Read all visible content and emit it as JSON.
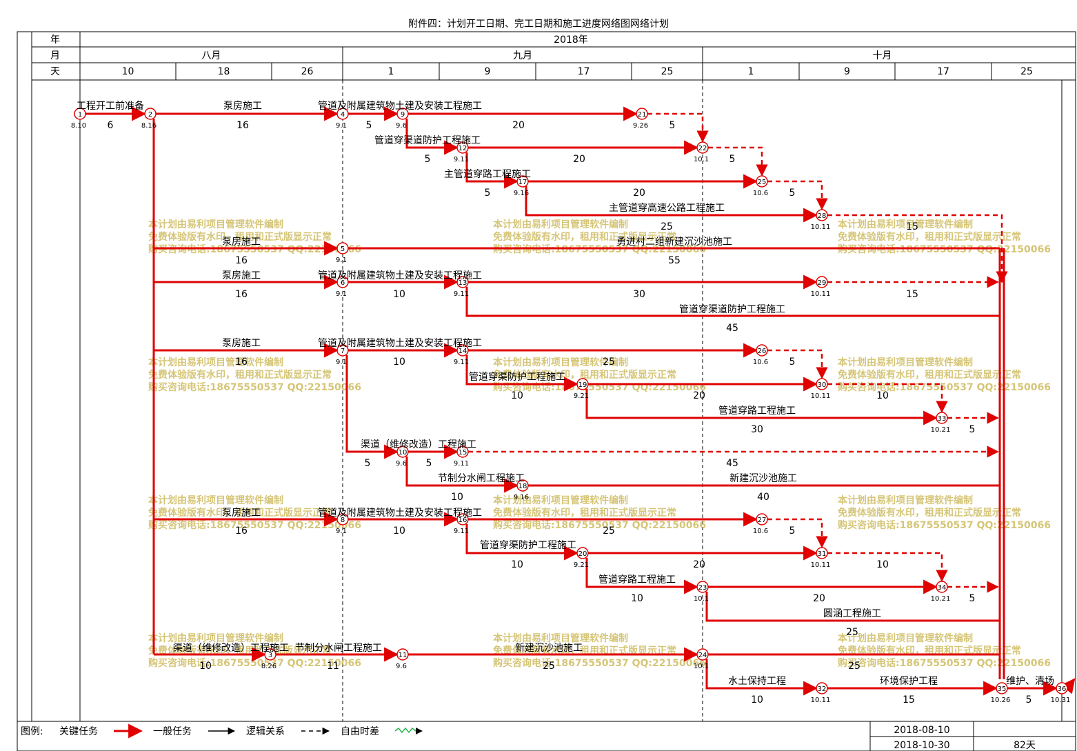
{
  "title": "附件四：计划开工日期、完工日期和施工进度网络图网络计划",
  "header": {
    "row_labels": [
      "年",
      "月",
      "天"
    ],
    "year": "2018年",
    "months": [
      "八月",
      "九月",
      "十月"
    ],
    "days": [
      "10",
      "18",
      "26",
      "1",
      "9",
      "17",
      "25",
      "1",
      "9",
      "17",
      "25"
    ]
  },
  "watermark": [
    "本计划由易利项目管理软件编制",
    "免费体验版有水印，租用和正式版显示正常",
    "购买咨询电话:18675550537 QQ:22150066"
  ],
  "legend": {
    "label": "图例:",
    "critical": "关键任务",
    "general": "一般任务",
    "logic": "逻辑关系",
    "free": "自由时差",
    "start": "2018-08-10",
    "end": "2018-10-30",
    "total": "82天"
  },
  "nodes": [
    {
      "id": "1",
      "date": "8.10"
    },
    {
      "id": "2",
      "date": "8.16"
    },
    {
      "id": "4",
      "date": "9.1"
    },
    {
      "id": "9",
      "date": "9.6"
    },
    {
      "id": "21",
      "date": "9.26"
    },
    {
      "id": "12",
      "date": "9.11"
    },
    {
      "id": "22",
      "date": "10.1"
    },
    {
      "id": "17",
      "date": "9.16"
    },
    {
      "id": "25",
      "date": "10.6"
    },
    {
      "id": "28",
      "date": "10.11"
    },
    {
      "id": "5",
      "date": "9.1"
    },
    {
      "id": "6",
      "date": "9.1"
    },
    {
      "id": "13",
      "date": "9.11"
    },
    {
      "id": "29",
      "date": "10.11"
    },
    {
      "id": "7",
      "date": "9.1"
    },
    {
      "id": "14",
      "date": "9.11"
    },
    {
      "id": "26",
      "date": "10.6"
    },
    {
      "id": "19",
      "date": "9.21"
    },
    {
      "id": "30",
      "date": "10.11"
    },
    {
      "id": "33",
      "date": "10.21"
    },
    {
      "id": "10",
      "date": "9.6"
    },
    {
      "id": "15",
      "date": "9.11"
    },
    {
      "id": "18",
      "date": "9.16"
    },
    {
      "id": "8",
      "date": "9.1"
    },
    {
      "id": "16",
      "date": "9.11"
    },
    {
      "id": "27",
      "date": "10.6"
    },
    {
      "id": "20",
      "date": "9.21"
    },
    {
      "id": "31",
      "date": "10.11"
    },
    {
      "id": "23",
      "date": "10.1"
    },
    {
      "id": "34",
      "date": "10.21"
    },
    {
      "id": "3",
      "date": "8.26"
    },
    {
      "id": "11",
      "date": "9.6"
    },
    {
      "id": "24",
      "date": "10.1"
    },
    {
      "id": "32",
      "date": "10.11"
    },
    {
      "id": "35",
      "date": "10.26"
    },
    {
      "id": "36",
      "date": "10.31"
    }
  ],
  "tasks": [
    {
      "name": "工程开工前准备",
      "duration": "6"
    },
    {
      "name": "泵房施工",
      "duration": "16"
    },
    {
      "name": "管道及附属建筑物土建及安装工程施工",
      "duration": "5"
    },
    {
      "name": "",
      "duration": "20"
    },
    {
      "name": "",
      "duration": "5"
    },
    {
      "name": "管道穿渠道防护工程施工",
      "duration": "5"
    },
    {
      "name": "",
      "duration": "20"
    },
    {
      "name": "",
      "duration": "5"
    },
    {
      "name": "主管道穿路工程施工",
      "duration": "5"
    },
    {
      "name": "",
      "duration": "20"
    },
    {
      "name": "",
      "duration": "5"
    },
    {
      "name": "主管道穿高速公路工程施工",
      "duration": "25"
    },
    {
      "name": "",
      "duration": "15"
    },
    {
      "name": "泵房施工",
      "duration": "16"
    },
    {
      "name": "勇进村二组新建沉沙池施工",
      "duration": "55"
    },
    {
      "name": "泵房施工",
      "duration": "16"
    },
    {
      "name": "管道及附属建筑物土建及安装工程施工",
      "duration": "10"
    },
    {
      "name": "",
      "duration": "30"
    },
    {
      "name": "",
      "duration": "15"
    },
    {
      "name": "管道穿渠道防护工程施工",
      "duration": "45"
    },
    {
      "name": "泵房施工",
      "duration": "16"
    },
    {
      "name": "管道及附属建筑物土建及安装工程施工",
      "duration": "10"
    },
    {
      "name": "",
      "duration": "25"
    },
    {
      "name": "",
      "duration": "5"
    },
    {
      "name": "管道穿渠防护工程施工",
      "duration": "10"
    },
    {
      "name": "",
      "duration": "20"
    },
    {
      "name": "",
      "duration": "10"
    },
    {
      "name": "管道穿路工程施工",
      "duration": "30"
    },
    {
      "name": "",
      "duration": "5"
    },
    {
      "name": "渠道（维修改造）工程施工",
      "duration": "5"
    },
    {
      "name": "",
      "duration": "5"
    },
    {
      "name": "",
      "duration": "45"
    },
    {
      "name": "节制分水闸工程施工",
      "duration": "10"
    },
    {
      "name": "新建沉沙池施工",
      "duration": "40"
    },
    {
      "name": "泵房施工",
      "duration": "16"
    },
    {
      "name": "管道及附属建筑物土建及安装工程施工",
      "duration": "10"
    },
    {
      "name": "",
      "duration": "25"
    },
    {
      "name": "",
      "duration": "5"
    },
    {
      "name": "管道穿渠防护工程施工",
      "duration": "10"
    },
    {
      "name": "",
      "duration": "20"
    },
    {
      "name": "",
      "duration": "10"
    },
    {
      "name": "管道穿路工程施工",
      "duration": "10"
    },
    {
      "name": "",
      "duration": "20"
    },
    {
      "name": "",
      "duration": "5"
    },
    {
      "name": "圆涵工程施工",
      "duration": "25"
    },
    {
      "name": "渠道（维修改造）工程施工",
      "duration": "10"
    },
    {
      "name": "节制分水闸工程施工",
      "duration": "11"
    },
    {
      "name": "新建沉沙池施工",
      "duration": "25"
    },
    {
      "name": "",
      "duration": "25"
    },
    {
      "name": "水土保持工程",
      "duration": "10"
    },
    {
      "name": "环境保护工程",
      "duration": "15"
    },
    {
      "name": "维护、清场",
      "duration": "5"
    }
  ],
  "colors": {
    "critical": "#e00000",
    "watermark": "#c8b24a",
    "grid": "#000000"
  }
}
